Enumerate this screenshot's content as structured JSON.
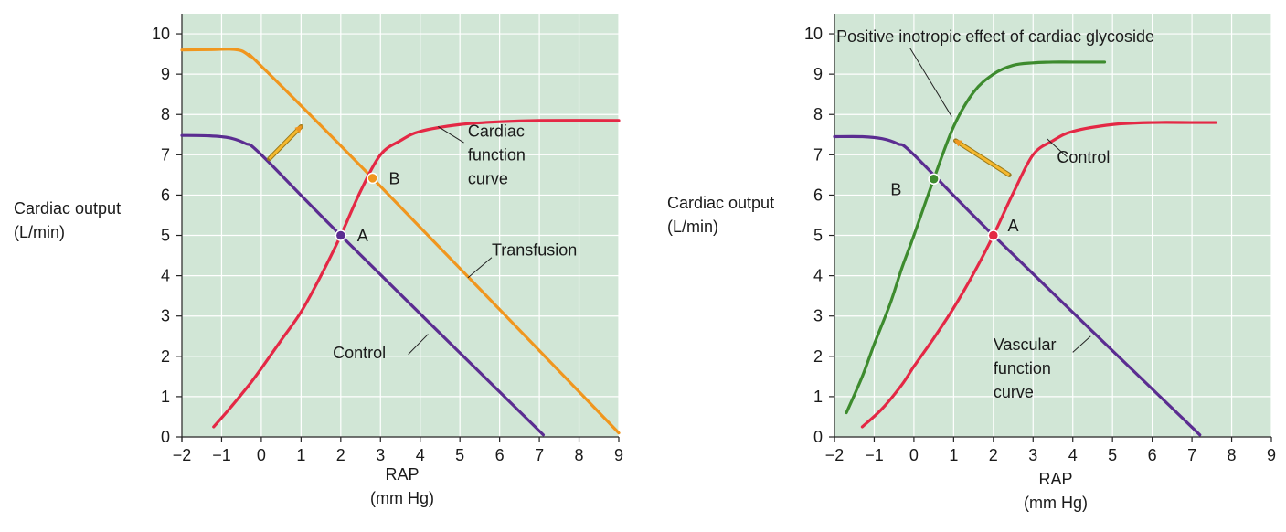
{
  "chart_data": [
    {
      "type": "line",
      "panel": "left",
      "ylabel_lines": [
        "Cardiac output",
        "(L/min)"
      ],
      "xlabel_lines": [
        "RAP",
        "(mm Hg)"
      ],
      "xlim": [
        -2,
        9
      ],
      "ylim": [
        0,
        10.5
      ],
      "xticks": [
        -2,
        -1,
        0,
        1,
        2,
        3,
        4,
        5,
        6,
        7,
        8,
        9
      ],
      "xtick_labels": [
        "−2",
        "−1",
        "0",
        "1",
        "2",
        "3",
        "4",
        "5",
        "6",
        "7",
        "8",
        "9"
      ],
      "yticks": [
        0,
        1,
        2,
        3,
        4,
        5,
        6,
        7,
        8,
        9,
        10
      ],
      "ytick_labels": [
        "0",
        "1",
        "2",
        "3",
        "4",
        "5",
        "6",
        "7",
        "8",
        "9",
        "10"
      ],
      "grid": true,
      "background": "#d1e6d6",
      "series": [
        {
          "key": "control",
          "color": "#5b2d91",
          "x": [
            -2,
            -1.3,
            -0.8,
            -0.4,
            0,
            2,
            7.1
          ],
          "y": [
            7.48,
            7.47,
            7.42,
            7.28,
            7.0,
            5.0,
            0.05
          ]
        },
        {
          "key": "transfusion",
          "color": "#f0961e",
          "x": [
            -2,
            -1.3,
            -0.8,
            -0.5,
            -0.3,
            0,
            2.8,
            9
          ],
          "y": [
            9.6,
            9.61,
            9.62,
            9.58,
            9.45,
            9.2,
            6.42,
            0.1
          ]
        },
        {
          "key": "cardiac",
          "color": "#e42845",
          "x": [
            -1.2,
            -0.8,
            -0.3,
            0,
            0.5,
            1,
            1.5,
            2,
            2.5,
            3,
            3.5,
            4,
            5,
            6,
            7,
            9
          ],
          "y": [
            0.25,
            0.7,
            1.3,
            1.7,
            2.4,
            3.1,
            4.0,
            5.0,
            6.1,
            7.0,
            7.35,
            7.58,
            7.75,
            7.82,
            7.85,
            7.85
          ]
        }
      ],
      "points": [
        {
          "label": "A",
          "x": 2,
          "y": 5,
          "color": "#5b2d91",
          "lx": 2.55,
          "ly": 4.85
        },
        {
          "label": "B",
          "x": 2.8,
          "y": 6.42,
          "color": "#f0961e",
          "lx": 3.35,
          "ly": 6.27
        }
      ],
      "annotations": [
        {
          "lines": [
            "Cardiac",
            "function",
            "curve"
          ],
          "x": 5.2,
          "y": 7.45,
          "lead": [
            [
              4.45,
              7.7
            ],
            [
              5.1,
              7.3
            ]
          ]
        },
        {
          "lines": [
            "Transfusion"
          ],
          "x": 5.8,
          "y": 4.5,
          "lead": [
            [
              5.2,
              3.95
            ],
            [
              5.8,
              4.45
            ]
          ]
        },
        {
          "lines": [
            "Control"
          ],
          "x": 1.8,
          "y": 1.95,
          "lead": [
            [
              4.2,
              2.55
            ],
            [
              3.7,
              2.05
            ]
          ]
        }
      ],
      "arrows": [
        {
          "from": [
            0.2,
            6.9
          ],
          "to": [
            1.0,
            7.7
          ]
        }
      ]
    },
    {
      "type": "line",
      "panel": "right",
      "ylabel_lines": [
        "Cardiac output",
        "(L/min)"
      ],
      "xlabel_lines": [
        "RAP",
        "(mm Hg)"
      ],
      "xlim": [
        -2,
        9
      ],
      "ylim": [
        0,
        10.5
      ],
      "xticks": [
        -2,
        -1,
        0,
        1,
        2,
        3,
        4,
        5,
        6,
        7,
        8,
        9
      ],
      "xtick_labels": [
        "−2",
        "−1",
        "0",
        "1",
        "2",
        "3",
        "4",
        "5",
        "6",
        "7",
        "8",
        "9"
      ],
      "yticks": [
        0,
        1,
        2,
        3,
        4,
        5,
        6,
        7,
        8,
        9,
        10
      ],
      "ytick_labels": [
        "0",
        "1",
        "2",
        "3",
        "4",
        "5",
        "6",
        "7",
        "8",
        "9",
        "10"
      ],
      "grid": true,
      "background": "#d1e6d6",
      "series": [
        {
          "key": "vascular",
          "color": "#5b2d91",
          "x": [
            -2,
            -1.3,
            -0.8,
            -0.4,
            0,
            2,
            7.2
          ],
          "y": [
            7.45,
            7.45,
            7.4,
            7.27,
            7.0,
            5.0,
            0.05
          ]
        },
        {
          "key": "glycoside",
          "color": "#3d8b2e",
          "x": [
            -1.7,
            -1.3,
            -1.0,
            -0.6,
            -0.3,
            0,
            0.5,
            1.0,
            1.5,
            2.0,
            2.5,
            3.0,
            3.5,
            4.0,
            4.8
          ],
          "y": [
            0.6,
            1.5,
            2.3,
            3.3,
            4.2,
            5.0,
            6.4,
            7.7,
            8.55,
            9.0,
            9.22,
            9.28,
            9.3,
            9.3,
            9.3
          ]
        },
        {
          "key": "control",
          "color": "#e42845",
          "x": [
            -1.3,
            -0.8,
            -0.3,
            0,
            0.5,
            1,
            1.5,
            2,
            2.5,
            3,
            3.5,
            4,
            5,
            6,
            7,
            7.6
          ],
          "y": [
            0.25,
            0.7,
            1.3,
            1.75,
            2.45,
            3.2,
            4.05,
            5.0,
            6.05,
            7.0,
            7.35,
            7.58,
            7.75,
            7.8,
            7.8,
            7.8
          ]
        }
      ],
      "points": [
        {
          "label": "A",
          "x": 2,
          "y": 5,
          "color": "#e42845",
          "lx": 2.5,
          "ly": 5.1
        },
        {
          "label": "B",
          "x": 0.5,
          "y": 6.4,
          "color": "#3d8b2e",
          "lx": -0.45,
          "ly": 6.0
        }
      ],
      "annotations": [
        {
          "lines": [
            "Positive inotropic effect of cardiac glycoside"
          ],
          "x": -1.95,
          "y": 9.8,
          "lead": [
            [
              -0.1,
              9.65
            ],
            [
              0.95,
              7.95
            ]
          ]
        },
        {
          "lines": [
            "Control"
          ],
          "x": 3.6,
          "y": 6.8,
          "lead": [
            [
              3.35,
              7.4
            ],
            [
              3.85,
              6.95
            ]
          ]
        },
        {
          "lines": [
            "Vascular",
            "function",
            "curve"
          ],
          "x": 2.0,
          "y": 2.15,
          "lead": [
            [
              4.45,
              2.5
            ],
            [
              4.0,
              2.1
            ]
          ]
        }
      ],
      "arrows": [
        {
          "from": [
            2.4,
            6.5
          ],
          "to": [
            1.05,
            7.35
          ]
        }
      ]
    }
  ]
}
